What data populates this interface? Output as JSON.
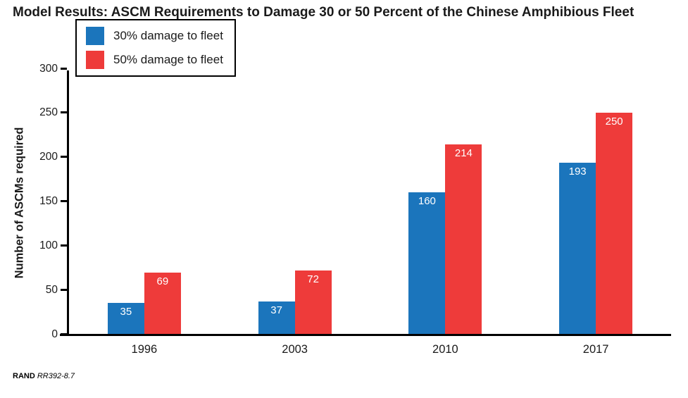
{
  "chart_data": {
    "type": "bar",
    "title": "Model Results: ASCM Requirements to Damage 30 or 50 Percent of the Chinese Amphibious Fleet",
    "categories": [
      "1996",
      "2003",
      "2010",
      "2017"
    ],
    "series": [
      {
        "name": "30% damage to fleet",
        "color": "#1b75bc",
        "values": [
          35,
          37,
          160,
          193
        ]
      },
      {
        "name": "50% damage to fleet",
        "color": "#ee3b3a",
        "values": [
          69,
          72,
          214,
          250
        ]
      }
    ],
    "xlabel": "",
    "ylabel": "Number of ASCMs required",
    "ylim": [
      0,
      300
    ],
    "yticks": [
      0,
      50,
      100,
      150,
      200,
      250,
      300
    ],
    "grid": false,
    "legend_position": "top-left-inside",
    "bar_label_color": "#ffffff",
    "axis_color": "#000000"
  },
  "footer": {
    "source_label": "RAND",
    "source_id": "RR392-8.7"
  }
}
